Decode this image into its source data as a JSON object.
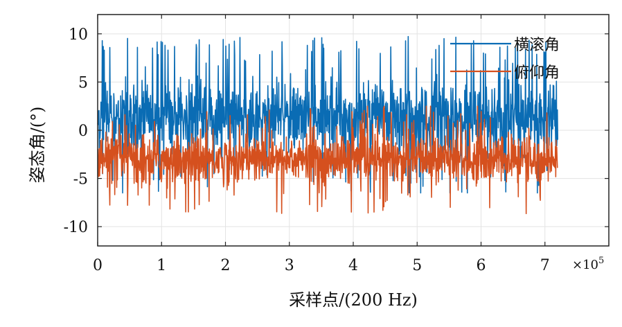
{
  "chart_data": {
    "type": "line",
    "xlabel": "采样点/(200 Hz)",
    "ylabel": "姿态角/(°)",
    "x_exponent_label": "×10",
    "x_exponent_power": "5",
    "xlim": [
      0,
      800000
    ],
    "ylim": [
      -12,
      12
    ],
    "x_ticks": [
      0,
      100000,
      200000,
      300000,
      400000,
      500000,
      600000,
      700000
    ],
    "x_tick_labels": [
      "0",
      "1",
      "2",
      "3",
      "4",
      "5",
      "6",
      "7"
    ],
    "y_ticks": [
      10,
      5,
      0,
      -5,
      -10
    ],
    "y_tick_labels": [
      "10",
      "5",
      "0",
      "-5",
      "-10"
    ],
    "grid": true,
    "legend_position": "top-right",
    "x_range": [
      0,
      720000
    ],
    "series": [
      {
        "name": "横滚角",
        "color": "#0a6cb4",
        "mean": 1.3,
        "typical_min": -6.5,
        "typical_max": 9.8
      },
      {
        "name": "俯仰角",
        "color": "#d5501e",
        "mean": -3.0,
        "typical_min": -9.0,
        "typical_max": 2.5
      }
    ]
  }
}
